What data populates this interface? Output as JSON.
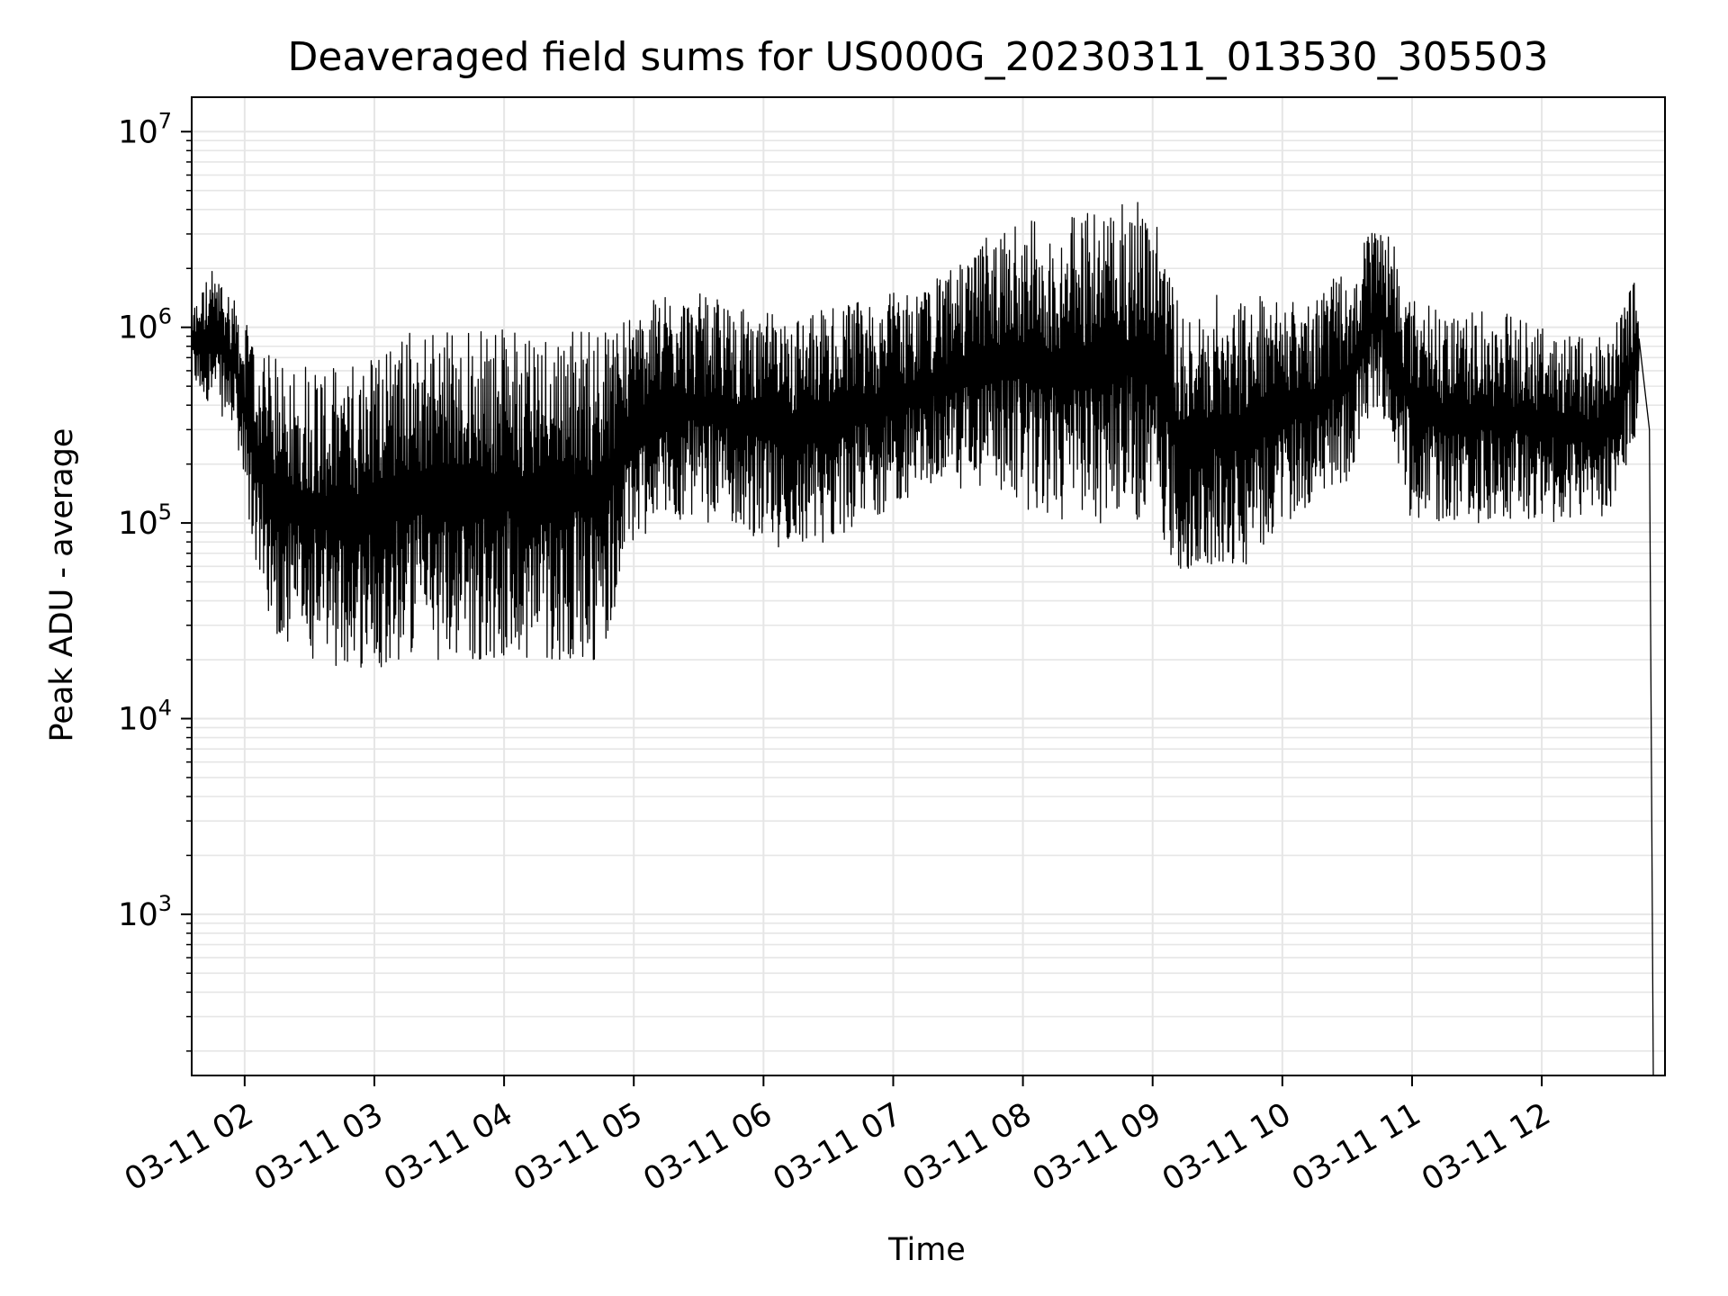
{
  "chart_data": {
    "type": "line",
    "title": "Deaveraged field sums for US000G_20230311_013530_305503",
    "xlabel": "Time",
    "ylabel": "Peak ADU - average",
    "yscale": "log",
    "ylim": [
      150,
      15000000
    ],
    "xlim": [
      "2023-03-11 01:35:30",
      "2023-03-11 12:57:00"
    ],
    "grid": true,
    "line_color": "#000000",
    "grid_color": "#e6e6e6",
    "x_ticks": [
      {
        "label": "03-11 02",
        "value": "2023-03-11 02:00"
      },
      {
        "label": "03-11 03",
        "value": "2023-03-11 03:00"
      },
      {
        "label": "03-11 04",
        "value": "2023-03-11 04:00"
      },
      {
        "label": "03-11 05",
        "value": "2023-03-11 05:00"
      },
      {
        "label": "03-11 06",
        "value": "2023-03-11 06:00"
      },
      {
        "label": "03-11 07",
        "value": "2023-03-11 07:00"
      },
      {
        "label": "03-11 08",
        "value": "2023-03-11 08:00"
      },
      {
        "label": "03-11 09",
        "value": "2023-03-11 09:00"
      },
      {
        "label": "03-11 10",
        "value": "2023-03-11 10:00"
      },
      {
        "label": "03-11 11",
        "value": "2023-03-11 11:00"
      },
      {
        "label": "03-11 12",
        "value": "2023-03-11 12:00"
      }
    ],
    "y_ticks": [
      {
        "base": "10",
        "exp": "3",
        "value": 1000
      },
      {
        "base": "10",
        "exp": "4",
        "value": 10000
      },
      {
        "base": "10",
        "exp": "5",
        "value": 100000
      },
      {
        "base": "10",
        "exp": "6",
        "value": 1000000
      },
      {
        "base": "10",
        "exp": "7",
        "value": 10000000
      }
    ],
    "series": [
      {
        "envelope": {
          "x": [
            "2023-03-11 01:36",
            "2023-03-11 01:45",
            "2023-03-11 01:55",
            "2023-03-11 02:05",
            "2023-03-11 02:15",
            "2023-03-11 02:30",
            "2023-03-11 02:45",
            "2023-03-11 03:00",
            "2023-03-11 03:15",
            "2023-03-11 03:30",
            "2023-03-11 03:45",
            "2023-03-11 04:00",
            "2023-03-11 04:15",
            "2023-03-11 04:30",
            "2023-03-11 04:45",
            "2023-03-11 05:00",
            "2023-03-11 05:15",
            "2023-03-11 05:30",
            "2023-03-11 05:45",
            "2023-03-11 06:00",
            "2023-03-11 06:15",
            "2023-03-11 06:30",
            "2023-03-11 06:45",
            "2023-03-11 07:00",
            "2023-03-11 07:15",
            "2023-03-11 07:30",
            "2023-03-11 07:45",
            "2023-03-11 08:00",
            "2023-03-11 08:15",
            "2023-03-11 08:30",
            "2023-03-11 08:45",
            "2023-03-11 09:00",
            "2023-03-11 09:15",
            "2023-03-11 09:30",
            "2023-03-11 09:45",
            "2023-03-11 10:00",
            "2023-03-11 10:15",
            "2023-03-11 10:30",
            "2023-03-11 10:45",
            "2023-03-11 11:00",
            "2023-03-11 11:15",
            "2023-03-11 11:30",
            "2023-03-11 11:45",
            "2023-03-11 12:00",
            "2023-03-11 12:15",
            "2023-03-11 12:30",
            "2023-03-11 12:45"
          ],
          "high": [
            1300000,
            2000000,
            1500000,
            800000,
            700000,
            700000,
            600000,
            800000,
            1000000,
            1000000,
            1000000,
            1000000,
            1000000,
            1000000,
            1000000,
            1200000,
            1500000,
            1500000,
            1300000,
            1200000,
            1200000,
            1300000,
            1400000,
            1500000,
            1600000,
            2200000,
            3000000,
            3500000,
            3500000,
            4000000,
            5000000,
            4500000,
            1000000,
            1500000,
            1500000,
            1400000,
            1500000,
            2000000,
            4000000,
            1500000,
            1200000,
            1200000,
            1200000,
            1000000,
            900000,
            900000,
            2000000
          ],
          "low": [
            500000,
            400000,
            300000,
            60000,
            25000,
            20000,
            18000,
            18000,
            20000,
            20000,
            20000,
            20000,
            20000,
            20000,
            20000,
            80000,
            100000,
            100000,
            100000,
            80000,
            70000,
            80000,
            100000,
            120000,
            150000,
            150000,
            150000,
            120000,
            100000,
            100000,
            100000,
            100000,
            50000,
            60000,
            60000,
            100000,
            120000,
            150000,
            400000,
            100000,
            100000,
            100000,
            100000,
            100000,
            100000,
            100000,
            300000
          ]
        }
      }
    ]
  }
}
